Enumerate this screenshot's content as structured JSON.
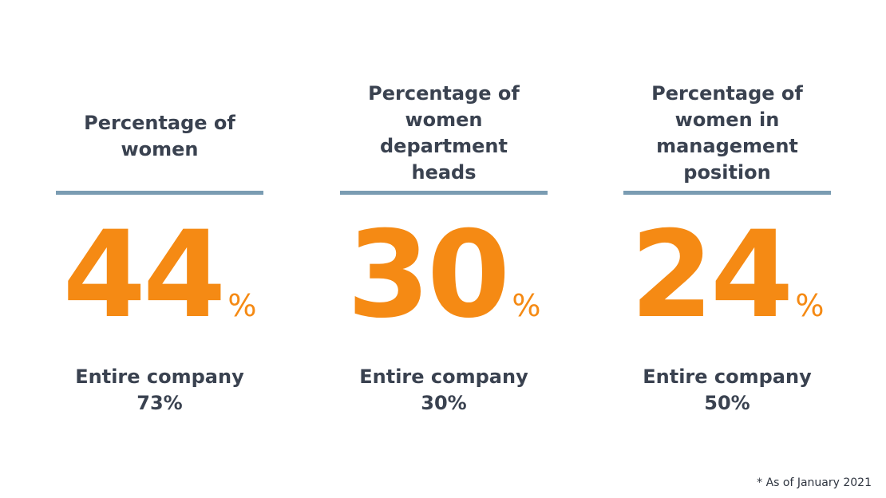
{
  "stats": [
    {
      "heading": "Percentage of\nwomen",
      "value": "44",
      "unit": "%",
      "sub_label": "Entire company",
      "sub_value": "73%"
    },
    {
      "heading": "Percentage of\nwomen\ndepartment\nheads",
      "value": "30",
      "unit": "%",
      "sub_label": "Entire company",
      "sub_value": "30%"
    },
    {
      "heading": "Percentage of\nwomen in\nmanagement\nposition",
      "value": "24",
      "unit": "%",
      "sub_label": "Entire company",
      "sub_value": "50%"
    }
  ],
  "footnote": "* As of January 2021",
  "colors": {
    "accent": "#f58a14",
    "rule": "#7a9cb2",
    "text": "#3a4250"
  }
}
